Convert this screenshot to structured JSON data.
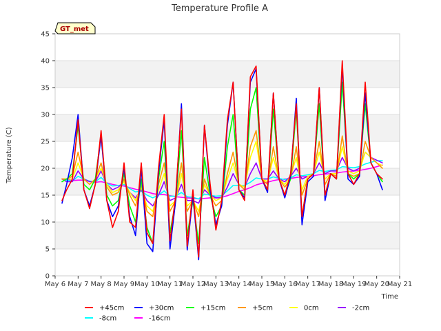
{
  "chart_data": {
    "type": "line",
    "title": "Temperature Profile A",
    "xlabel": "Time",
    "ylabel": "Temperature (C)",
    "badge": "GT_met",
    "ylim": [
      0,
      45
    ],
    "yticks": [
      0,
      5,
      10,
      15,
      20,
      25,
      30,
      35,
      40,
      45
    ],
    "xlim": [
      "May 6",
      "May 21"
    ],
    "xticks": [
      "May 6",
      "May 7",
      "May 8",
      "May 9",
      "May 10",
      "May 11",
      "May 12",
      "May 13",
      "May 14",
      "May 15",
      "May 16",
      "May 17",
      "May 18",
      "May 19",
      "May 20",
      "May 21"
    ],
    "grid": "horizontal alternating bands",
    "legend_position": "bottom",
    "x": [
      6.3,
      6.5,
      6.75,
      7.0,
      7.25,
      7.5,
      7.75,
      8.0,
      8.25,
      8.5,
      8.75,
      9.0,
      9.25,
      9.5,
      9.75,
      10.0,
      10.25,
      10.5,
      10.75,
      11.0,
      11.25,
      11.5,
      11.75,
      12.0,
      12.25,
      12.5,
      12.75,
      13.0,
      13.25,
      13.5,
      13.75,
      14.0,
      14.25,
      14.5,
      14.75,
      15.0,
      15.25,
      15.5,
      15.75,
      16.0,
      16.25,
      16.5,
      16.75,
      17.0,
      17.25,
      17.5,
      17.75,
      18.0,
      18.25,
      18.5,
      18.75,
      19.0,
      19.25,
      19.5,
      19.75,
      20.0,
      20.25
    ],
    "series": [
      {
        "name": "+45cm",
        "color": "#ff0000",
        "values": [
          14,
          16,
          18,
          29,
          16,
          12.5,
          17,
          27,
          14,
          9,
          12,
          21,
          10,
          9,
          21,
          8,
          6,
          20,
          30,
          6.5,
          15,
          31,
          5.5,
          16,
          3.5,
          28,
          17,
          8.5,
          14,
          29,
          36,
          16,
          14,
          37,
          39,
          18,
          16,
          34,
          18,
          15,
          19,
          32,
          11,
          18,
          19,
          35,
          15,
          19,
          18,
          40,
          19,
          17,
          19,
          36,
          21,
          19,
          18
        ]
      },
      {
        "name": "+30cm",
        "color": "#0000ff",
        "values": [
          13.5,
          17,
          22,
          30,
          16,
          13,
          17,
          26,
          14,
          11,
          13,
          20,
          11,
          7.5,
          20,
          6,
          4.5,
          19,
          29,
          5,
          14,
          32,
          4.8,
          15,
          3,
          28,
          16,
          9.5,
          13,
          28,
          36,
          16,
          14.5,
          36,
          38.5,
          18,
          15.5,
          34,
          18,
          14.5,
          18.5,
          33,
          9.5,
          17.5,
          18.5,
          35,
          14,
          19,
          18,
          39,
          18,
          17,
          18.5,
          34,
          21,
          19,
          16
        ]
      },
      {
        "name": "+15cm",
        "color": "#00ff00",
        "values": [
          17.5,
          18,
          19,
          28,
          17,
          16,
          18,
          26,
          15,
          13,
          14,
          19,
          13,
          10,
          18,
          9,
          6,
          18,
          25,
          8,
          14,
          27,
          7.5,
          14,
          6,
          22,
          15,
          11,
          13,
          24,
          30,
          16,
          15,
          31,
          35,
          18,
          16,
          31,
          18,
          15,
          18,
          31,
          11,
          18,
          19,
          32,
          15,
          19,
          18,
          36,
          19,
          18,
          19,
          32,
          21,
          19,
          17.5
        ]
      },
      {
        "name": "+5cm",
        "color": "#ff9900",
        "values": [
          18,
          18,
          18.5,
          23,
          18,
          17,
          18,
          21,
          16.5,
          15,
          15.5,
          18,
          15,
          13,
          17,
          12,
          11,
          17,
          21,
          12,
          14,
          21,
          12,
          14,
          11,
          18,
          15,
          13,
          14,
          19,
          23,
          17,
          16,
          24,
          27,
          18,
          17,
          24,
          18,
          16.5,
          18,
          24,
          15,
          18,
          19,
          25,
          17,
          19,
          18.5,
          26,
          19,
          18.5,
          19,
          25,
          22,
          21,
          20
        ]
      },
      {
        "name": "0cm",
        "color": "#ffff00",
        "values": [
          18,
          18,
          18,
          21,
          18,
          17,
          18,
          20,
          17,
          15.5,
          16,
          17.5,
          15.5,
          14,
          16.5,
          13,
          12,
          16,
          19,
          13,
          14,
          19,
          13,
          14,
          12,
          17,
          15,
          14,
          14.5,
          18,
          21,
          17,
          16.5,
          22,
          25,
          18,
          17.5,
          22,
          18,
          17,
          18.5,
          22,
          16,
          18.5,
          19,
          23,
          18,
          19,
          19,
          24,
          19.5,
          19,
          19.5,
          23,
          22,
          21,
          20.5
        ]
      },
      {
        "name": "-2cm",
        "color": "#9900ff",
        "values": [
          18,
          17.5,
          17.5,
          19.5,
          18,
          17.5,
          17.5,
          19.5,
          17,
          16,
          16.5,
          17.5,
          15.5,
          14.5,
          16,
          14,
          13,
          15,
          17.5,
          14,
          14.5,
          17,
          14,
          14,
          13.5,
          16,
          15,
          14.5,
          14.5,
          16.5,
          19,
          17,
          16.5,
          19,
          21,
          18,
          18,
          19.5,
          18,
          17.5,
          18.5,
          20,
          18,
          18.5,
          19,
          21,
          19,
          19.5,
          19.5,
          22,
          20,
          19.5,
          20,
          23,
          22,
          21.5,
          21
        ]
      },
      {
        "name": "-8cm",
        "color": "#00ffff",
        "values": [
          18,
          17.8,
          17.6,
          18.5,
          18,
          17.6,
          17.5,
          18.3,
          17.2,
          16.7,
          16.8,
          17,
          16.2,
          15.6,
          15.8,
          15,
          14.5,
          15,
          15.8,
          14.8,
          14.8,
          15.5,
          14.7,
          14.6,
          14.3,
          15.2,
          15,
          14.8,
          14.9,
          15.8,
          16.8,
          16.8,
          16.8,
          17.4,
          18.2,
          18,
          18,
          18.4,
          18.1,
          17.9,
          18.2,
          18.8,
          18.6,
          18.8,
          19,
          19.6,
          19.4,
          19.6,
          19.7,
          20.3,
          20.2,
          20.1,
          20.3,
          20.8,
          21.1,
          21.4,
          21.4
        ]
      },
      {
        "name": "-16cm",
        "color": "#ff00ff",
        "values": [
          18,
          17.9,
          17.7,
          17.8,
          17.8,
          17.6,
          17.4,
          17.5,
          17.3,
          17,
          16.8,
          16.7,
          16.4,
          16.1,
          15.9,
          15.6,
          15.3,
          15.1,
          15.1,
          14.9,
          14.7,
          14.6,
          14.5,
          14.4,
          14.3,
          14.4,
          14.5,
          14.5,
          14.6,
          14.9,
          15.3,
          15.7,
          16,
          16.4,
          16.9,
          17.2,
          17.4,
          17.7,
          17.9,
          18,
          18.1,
          18.3,
          18.4,
          18.5,
          18.6,
          18.8,
          18.9,
          19,
          19.1,
          19.3,
          19.4,
          19.5,
          19.6,
          19.8,
          20,
          20.3,
          20.6
        ]
      }
    ]
  }
}
